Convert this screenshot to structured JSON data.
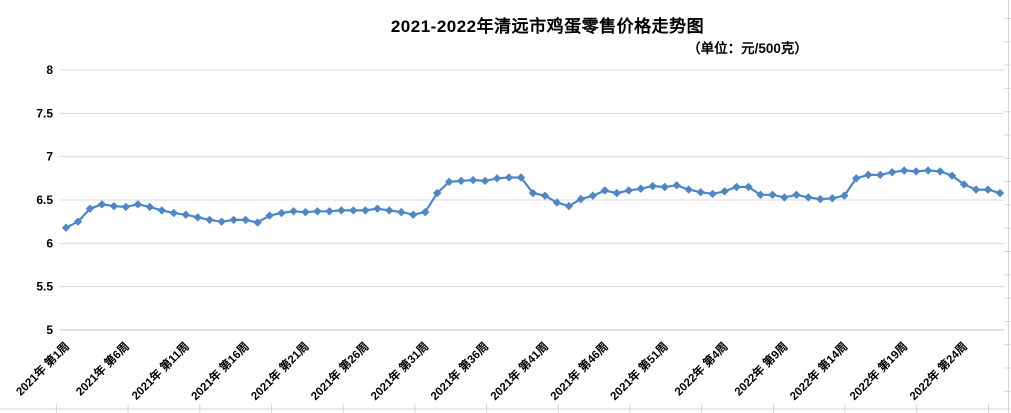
{
  "title": "2021-2022年清远市鸡蛋零售价格走势图",
  "subtitle": "（单位：元/500克）",
  "chart_data": {
    "type": "line",
    "title": "2021-2022年清远市鸡蛋零售价格走势图",
    "unit_note": "（单位：元/500克）",
    "grid": true,
    "legend": "none",
    "line_color": "#4f86c6",
    "marker": "diamond",
    "ylim": [
      5,
      8
    ],
    "ytick_step": 0.5,
    "yticks": [
      "8",
      "7.5",
      "7",
      "6.5",
      "6",
      "5.5",
      "5"
    ],
    "x_tick_labels": [
      "2021年 第1周",
      "2021年 第6周",
      "2021年 第11周",
      "2021年 第16周",
      "2021年 第21周",
      "2021年 第26周",
      "2021年 第31周",
      "2021年 第36周",
      "2021年 第41周",
      "2021年 第46周",
      "2021年 第51周",
      "2022年 第4周",
      "2022年 第9周",
      "2022年 第14周",
      "2022年 第19周",
      "2022年 第24周"
    ],
    "x_tick_indices": [
      0,
      5,
      10,
      15,
      20,
      25,
      30,
      35,
      40,
      45,
      50,
      55,
      60,
      65,
      70,
      75
    ],
    "x_range_note": "weekly points from 2021 week 1 to 2022 week 27",
    "series": [
      {
        "values": [
          6.18,
          6.25,
          6.4,
          6.45,
          6.43,
          6.42,
          6.45,
          6.42,
          6.38,
          6.35,
          6.33,
          6.3,
          6.27,
          6.25,
          6.27,
          6.27,
          6.24,
          6.32,
          6.35,
          6.37,
          6.36,
          6.37,
          6.37,
          6.38,
          6.38,
          6.38,
          6.4,
          6.38,
          6.36,
          6.33,
          6.36,
          6.58,
          6.71,
          6.72,
          6.73,
          6.72,
          6.75,
          6.76,
          6.76,
          6.58,
          6.55,
          6.47,
          6.43,
          6.51,
          6.55,
          6.61,
          6.58,
          6.61,
          6.63,
          6.66,
          6.65,
          6.67,
          6.62,
          6.59,
          6.57,
          6.6,
          6.65,
          6.65,
          6.56,
          6.56,
          6.53,
          6.56,
          6.53,
          6.51,
          6.52,
          6.55,
          6.75,
          6.79,
          6.79,
          6.82,
          6.84,
          6.83,
          6.84,
          6.83,
          6.78,
          6.68,
          6.62,
          6.62,
          6.58
        ]
      }
    ]
  }
}
